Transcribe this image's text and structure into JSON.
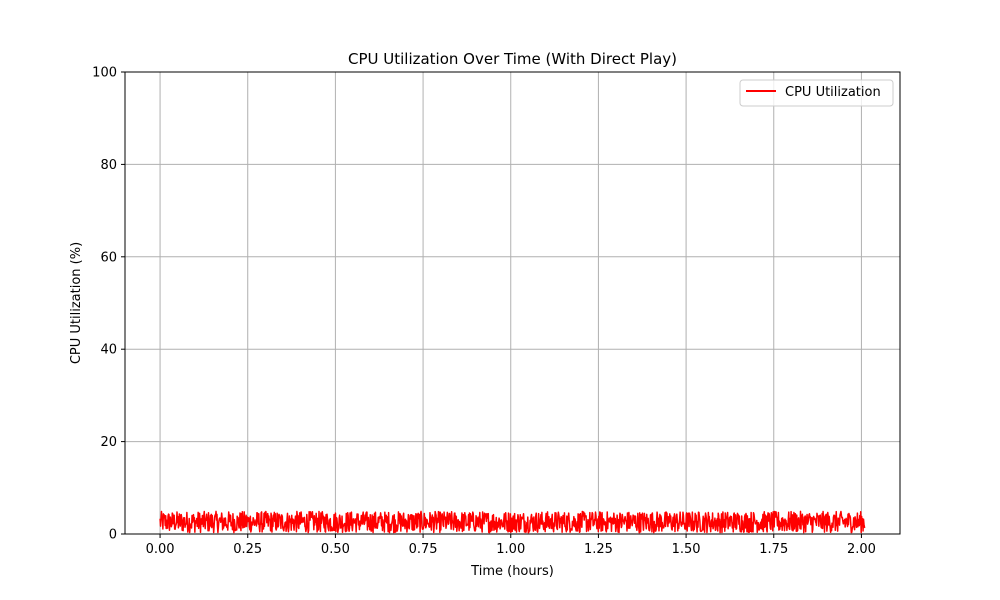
{
  "chart_data": {
    "type": "line",
    "title": "CPU Utilization Over Time (With Direct Play)",
    "xlabel": "Time (hours)",
    "ylabel": "CPU Utilization (%)",
    "xlim": [
      -0.1,
      2.11
    ],
    "ylim": [
      0,
      100
    ],
    "xticks": [
      0.0,
      0.25,
      0.5,
      0.75,
      1.0,
      1.25,
      1.5,
      1.75,
      2.0
    ],
    "xtick_labels": [
      "0.00",
      "0.25",
      "0.50",
      "0.75",
      "1.00",
      "1.25",
      "1.50",
      "1.75",
      "2.00"
    ],
    "yticks": [
      0,
      20,
      40,
      60,
      80,
      100
    ],
    "ytick_labels": [
      "0",
      "20",
      "40",
      "60",
      "80",
      "100"
    ],
    "grid": true,
    "legend": {
      "position": "top-right",
      "entries": [
        "CPU Utilization"
      ]
    },
    "series": [
      {
        "name": "CPU Utilization",
        "color": "#ff0000",
        "x_range": [
          0.0,
          2.01
        ],
        "value_range": [
          0.3,
          4.9
        ],
        "description_of_pattern": "noisy signal fluctuating uniformly between roughly 0 and 5 percent"
      }
    ]
  }
}
